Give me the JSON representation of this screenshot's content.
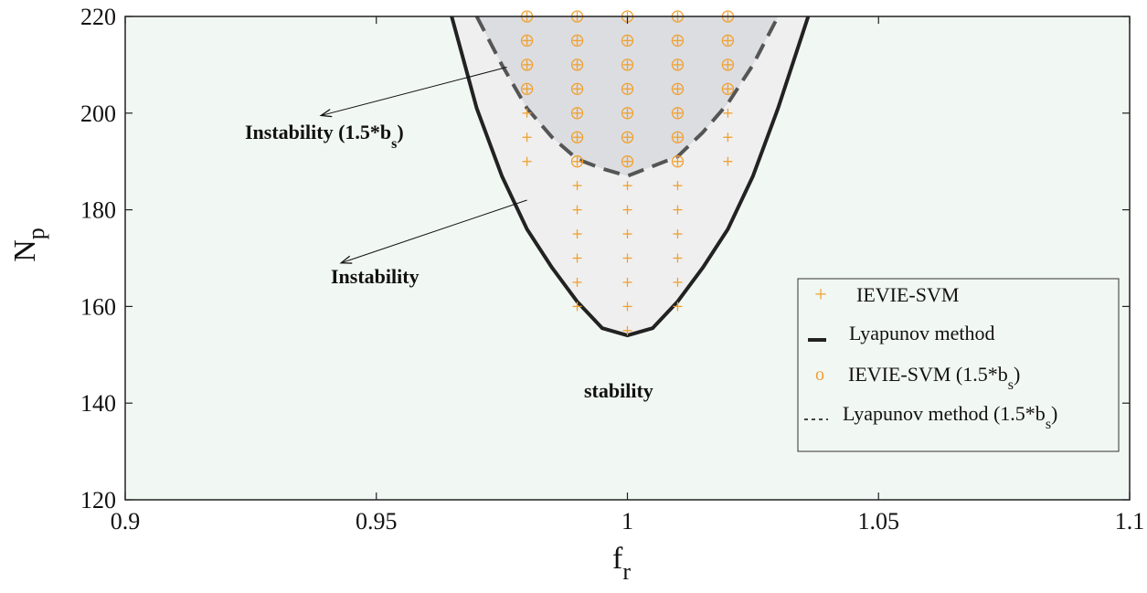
{
  "chart_data": {
    "type": "scatter",
    "xlabel": "f",
    "xlabel_sub": "r",
    "ylabel": "N",
    "ylabel_sub": "p",
    "xlim": [
      0.9,
      1.1
    ],
    "ylim": [
      120,
      220
    ],
    "x_ticks": [
      0.9,
      0.95,
      1.0,
      1.05,
      1.1
    ],
    "x_tick_labels": [
      "0.9",
      "0.95",
      "1",
      "1.05",
      "1.1"
    ],
    "y_ticks": [
      120,
      140,
      160,
      180,
      200,
      220
    ],
    "y_tick_labels": [
      "120",
      "140",
      "160",
      "180",
      "200",
      "220"
    ],
    "grid": false,
    "legend_position": "bottom-right",
    "colors": {
      "background": "#f1f7f3",
      "instability_region": "#efefef",
      "instability_15_region": "#dcdde0",
      "marker": "#f0a030",
      "lyapunov_line": "#222222",
      "lyapunov_15_line": "#555555"
    },
    "series": [
      {
        "name": "IEVIE-SVM",
        "marker": "+",
        "points": [
          [
            0.98,
            220
          ],
          [
            0.98,
            215
          ],
          [
            0.98,
            210
          ],
          [
            0.98,
            205
          ],
          [
            0.98,
            200
          ],
          [
            0.98,
            195
          ],
          [
            0.98,
            190
          ],
          [
            0.99,
            220
          ],
          [
            0.99,
            215
          ],
          [
            0.99,
            210
          ],
          [
            0.99,
            205
          ],
          [
            0.99,
            200
          ],
          [
            0.99,
            195
          ],
          [
            0.99,
            190
          ],
          [
            0.99,
            185
          ],
          [
            0.99,
            180
          ],
          [
            0.99,
            175
          ],
          [
            0.99,
            170
          ],
          [
            0.99,
            165
          ],
          [
            0.99,
            160
          ],
          [
            1.0,
            220
          ],
          [
            1.0,
            215
          ],
          [
            1.0,
            210
          ],
          [
            1.0,
            205
          ],
          [
            1.0,
            200
          ],
          [
            1.0,
            195
          ],
          [
            1.0,
            190
          ],
          [
            1.0,
            185
          ],
          [
            1.0,
            180
          ],
          [
            1.0,
            175
          ],
          [
            1.0,
            170
          ],
          [
            1.0,
            165
          ],
          [
            1.0,
            160
          ],
          [
            1.0,
            155
          ],
          [
            1.01,
            220
          ],
          [
            1.01,
            215
          ],
          [
            1.01,
            210
          ],
          [
            1.01,
            205
          ],
          [
            1.01,
            200
          ],
          [
            1.01,
            195
          ],
          [
            1.01,
            190
          ],
          [
            1.01,
            185
          ],
          [
            1.01,
            180
          ],
          [
            1.01,
            175
          ],
          [
            1.01,
            170
          ],
          [
            1.01,
            165
          ],
          [
            1.01,
            160
          ],
          [
            1.02,
            220
          ],
          [
            1.02,
            215
          ],
          [
            1.02,
            210
          ],
          [
            1.02,
            205
          ],
          [
            1.02,
            200
          ],
          [
            1.02,
            195
          ],
          [
            1.02,
            190
          ]
        ]
      },
      {
        "name": "Lyapunov method",
        "style": "solid",
        "x": [
          0.965,
          0.97,
          0.975,
          0.98,
          0.985,
          0.99,
          0.995,
          1.0,
          1.005,
          1.01,
          1.015,
          1.02,
          1.025,
          1.03,
          1.036
        ],
        "y": [
          220,
          201,
          187,
          176,
          168,
          161,
          155.5,
          154,
          155.5,
          161,
          168,
          176,
          187,
          201,
          220
        ]
      },
      {
        "name": "IEVIE-SVM (1.5*b",
        "name_sub": "s",
        "name_suffix": ")",
        "marker": "o",
        "points": [
          [
            0.98,
            220
          ],
          [
            0.98,
            215
          ],
          [
            0.98,
            210
          ],
          [
            0.98,
            205
          ],
          [
            0.99,
            220
          ],
          [
            0.99,
            215
          ],
          [
            0.99,
            210
          ],
          [
            0.99,
            205
          ],
          [
            0.99,
            200
          ],
          [
            0.99,
            195
          ],
          [
            0.99,
            190
          ],
          [
            1.0,
            220
          ],
          [
            1.0,
            215
          ],
          [
            1.0,
            210
          ],
          [
            1.0,
            205
          ],
          [
            1.0,
            200
          ],
          [
            1.0,
            195
          ],
          [
            1.0,
            190
          ],
          [
            1.01,
            220
          ],
          [
            1.01,
            215
          ],
          [
            1.01,
            210
          ],
          [
            1.01,
            205
          ],
          [
            1.01,
            200
          ],
          [
            1.01,
            195
          ],
          [
            1.01,
            190
          ],
          [
            1.02,
            220
          ],
          [
            1.02,
            215
          ],
          [
            1.02,
            210
          ],
          [
            1.02,
            205
          ]
        ]
      },
      {
        "name": "Lyapunov method (1.5*b",
        "name_sub": "s",
        "name_suffix": ")",
        "style": "dashed",
        "x": [
          0.97,
          0.975,
          0.98,
          0.985,
          0.99,
          0.995,
          1.0,
          1.005,
          1.01,
          1.015,
          1.02,
          1.025,
          1.03
        ],
        "y": [
          220,
          210,
          201,
          195,
          190.5,
          188.5,
          187,
          189,
          191,
          196,
          202,
          210,
          220
        ]
      }
    ],
    "annotations": [
      {
        "id": "instability15",
        "text": "Instability (1.5*b",
        "sub": "s",
        "suffix": ")",
        "x": 0.912,
        "y": 195.5,
        "arrow_from": [
          0.976,
          209.5
        ],
        "arrow_to": [
          0.939,
          199.5
        ]
      },
      {
        "id": "instability",
        "text": "Instability",
        "x": 0.92,
        "y": 166,
        "arrow_from": [
          0.98,
          182
        ],
        "arrow_to": [
          0.943,
          169
        ]
      },
      {
        "id": "stability",
        "text": "stability",
        "x": 0.9535,
        "y": 142
      }
    ]
  }
}
